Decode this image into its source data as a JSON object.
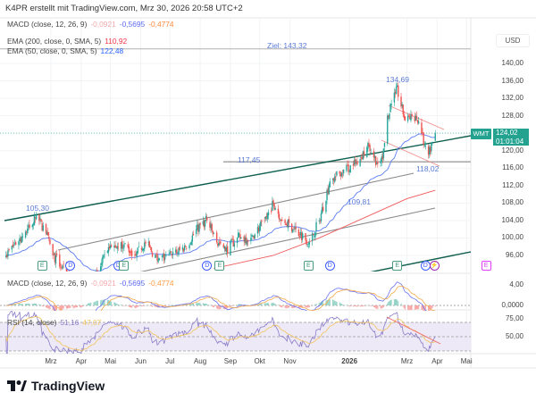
{
  "header": "K4PR erstellt mit TradingView.com, Mrz 30, 2026 20:58 UTC+2",
  "legend": {
    "macd_top": {
      "label": "MACD (close, 12, 26, 9)",
      "hist": "-0,0921",
      "macd": "-0,5695",
      "signal": "-0,4774"
    },
    "ema200": {
      "label": "EMA (200, close, 0, SMA, 5)",
      "value": "110,92"
    },
    "ema50": {
      "label": "EMA (50, close, 0, SMA, 5)",
      "value": "122,48"
    },
    "macd": {
      "label": "MACD (close, 12, 26, 9)",
      "hist": "-0,0921",
      "macd": "-0,5695",
      "signal": "-0,4774"
    },
    "rsi": {
      "label": "RSI (14, close)",
      "rsi": "51,16",
      "ma": "47,07"
    }
  },
  "colors": {
    "up": "#26a69a",
    "down": "#ef5350",
    "ema50": "#5b7cf5",
    "ema200": "#f0595a",
    "macd": "#6b73f0",
    "signal": "#f5a948",
    "rsi": "#8a7cc8",
    "rsima": "#f3c45a",
    "channel": "#0d5e4e",
    "accent": "#22a28f"
  },
  "price_axis": {
    "currency": "USD",
    "ticks": [
      "140,00",
      "136,00",
      "132,00",
      "128,00",
      "120,00",
      "116,00",
      "112,00",
      "108,00",
      "104,00",
      "100,00",
      "96,00"
    ],
    "tick_values": [
      140,
      136,
      132,
      128,
      120,
      116,
      112,
      108,
      104,
      100,
      96
    ]
  },
  "symbol_tag": "WMT",
  "last_price": "124,02",
  "countdown": "01:01:04",
  "macd_axis": [
    "4,00",
    "0,0000"
  ],
  "rsi_axis": [
    "75,00",
    "50,00"
  ],
  "time_axis": [
    {
      "label": "Mrz",
      "date": "2025-03-01"
    },
    {
      "label": "Apr",
      "date": "2025-04-01"
    },
    {
      "label": "Mai",
      "date": "2025-05-01"
    },
    {
      "label": "Jun",
      "date": "2025-06-01"
    },
    {
      "label": "Jul",
      "date": "2025-07-01"
    },
    {
      "label": "Aug",
      "date": "2025-08-01"
    },
    {
      "label": "Sep",
      "date": "2025-09-01"
    },
    {
      "label": "Okt",
      "date": "2025-10-01"
    },
    {
      "label": "Nov",
      "date": "2025-11-01"
    },
    {
      "label": "2026",
      "date": "2026-01-01"
    },
    {
      "label": "Mrz",
      "date": "2026-03-01"
    },
    {
      "label": "Apr",
      "date": "2026-04-01"
    },
    {
      "label": "Mai",
      "date": "2026-05-01"
    }
  ],
  "annotations": {
    "target": "Ziel: 143,32",
    "target_value": 143.32,
    "level": "117,45",
    "level_value": 117.45,
    "high": "134,69",
    "low_recent": "118,02",
    "low_mid": "109,81",
    "high_early": "105,30"
  },
  "events": [
    {
      "t": "E",
      "date": "2025-02-20"
    },
    {
      "t": "D",
      "date": "2025-03-21"
    },
    {
      "t": "D",
      "date": "2025-05-09"
    },
    {
      "t": "E",
      "date": "2025-05-15"
    },
    {
      "t": "D",
      "date": "2025-08-08"
    },
    {
      "t": "E",
      "date": "2025-08-21"
    },
    {
      "t": "E",
      "date": "2025-11-20"
    },
    {
      "t": "D",
      "date": "2025-12-12"
    },
    {
      "t": "E",
      "date": "2026-02-19"
    },
    {
      "t": "D",
      "date": "2026-03-20"
    },
    {
      "t": "⚡",
      "date": "2026-03-29"
    },
    {
      "t": "E",
      "date": "2026-05-21"
    }
  ],
  "brand": "TradingView",
  "chart_data": {
    "type": "candlestick",
    "title": "WMT",
    "ylabel": "USD",
    "ylim": [
      92,
      146
    ],
    "close_path": [
      [
        "2025-01-14",
        96
      ],
      [
        "2025-01-28",
        100
      ],
      [
        "2025-02-10",
        103
      ],
      [
        "2025-02-14",
        105.3
      ],
      [
        "2025-02-24",
        101
      ],
      [
        "2025-03-03",
        96
      ],
      [
        "2025-03-17",
        92
      ],
      [
        "2025-03-31",
        86
      ],
      [
        "2025-04-14",
        90
      ],
      [
        "2025-04-28",
        97
      ],
      [
        "2025-05-12",
        99
      ],
      [
        "2025-05-27",
        96
      ],
      [
        "2025-06-05",
        99
      ],
      [
        "2025-06-19",
        95
      ],
      [
        "2025-07-03",
        96
      ],
      [
        "2025-07-17",
        98
      ],
      [
        "2025-08-01",
        103
      ],
      [
        "2025-08-08",
        104
      ],
      [
        "2025-08-18",
        99
      ],
      [
        "2025-08-27",
        97
      ],
      [
        "2025-09-08",
        100
      ],
      [
        "2025-09-22",
        100
      ],
      [
        "2025-10-06",
        104
      ],
      [
        "2025-10-15",
        108
      ],
      [
        "2025-10-24",
        104
      ],
      [
        "2025-11-07",
        102
      ],
      [
        "2025-11-21",
        99
      ],
      [
        "2025-12-01",
        104
      ],
      [
        "2025-12-12",
        113
      ],
      [
        "2025-12-24",
        115
      ],
      [
        "2026-01-07",
        117
      ],
      [
        "2026-01-21",
        121
      ],
      [
        "2026-01-30",
        117
      ],
      [
        "2026-02-04",
        118
      ],
      [
        "2026-02-09",
        128
      ],
      [
        "2026-02-18",
        134.69
      ],
      [
        "2026-02-27",
        127
      ],
      [
        "2026-03-10",
        128
      ],
      [
        "2026-03-16",
        124
      ],
      [
        "2026-03-22",
        118.02
      ],
      [
        "2026-03-27",
        122
      ],
      [
        "2026-03-30",
        124.02
      ]
    ],
    "ema200_path": [
      [
        "2025-08-15",
        93
      ],
      [
        "2025-10-15",
        96
      ],
      [
        "2025-12-01",
        100
      ],
      [
        "2026-01-15",
        104.5
      ],
      [
        "2026-03-01",
        109
      ],
      [
        "2026-03-30",
        110.92
      ]
    ],
    "ema50_last": 122.48,
    "ema200_last": 110.92,
    "macd_last": {
      "hist": -0.0921,
      "macd": -0.5695,
      "signal": -0.4774
    },
    "rsi_last": {
      "rsi": 51.16,
      "ma": 47.07
    },
    "rsi_bands": [
      70,
      50,
      30
    ]
  }
}
